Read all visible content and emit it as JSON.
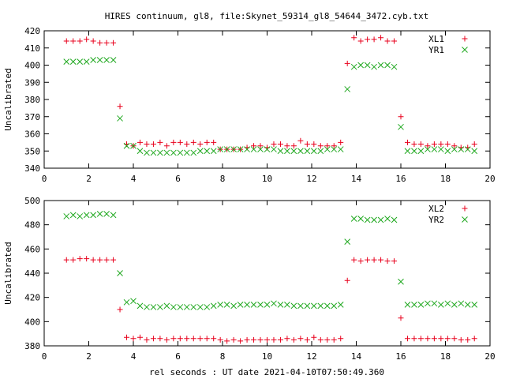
{
  "title": "HIRES continuum, gl8, file:Skynet_59314_gl8_54644_3472.cyb.txt",
  "xlabel": "rel seconds : UT date 2021-04-10T07:50:49.360",
  "colors": {
    "series1": "#e8001c",
    "series2": "#1fa81f"
  },
  "chart_data": [
    {
      "type": "scatter",
      "ylabel": "Uncalibrated",
      "xlim": [
        0,
        20
      ],
      "ylim": [
        340,
        420
      ],
      "xticks": [
        0,
        2,
        4,
        6,
        8,
        10,
        12,
        14,
        16,
        18,
        20
      ],
      "yticks": [
        340,
        350,
        360,
        370,
        380,
        390,
        400,
        410,
        420
      ],
      "legend_position": "top-right",
      "series": [
        {
          "name": "XL1",
          "marker": "plus",
          "color": "#e8001c",
          "x": [
            1.0,
            1.3,
            1.6,
            1.9,
            2.2,
            2.5,
            2.8,
            3.1,
            3.4,
            3.7,
            4.0,
            4.3,
            4.6,
            4.9,
            5.2,
            5.5,
            5.8,
            6.1,
            6.4,
            6.7,
            7.0,
            7.3,
            7.6,
            7.9,
            8.2,
            8.5,
            8.8,
            9.1,
            9.4,
            9.7,
            10.0,
            10.3,
            10.6,
            10.9,
            11.2,
            11.5,
            11.8,
            12.1,
            12.4,
            12.7,
            13.0,
            13.3,
            13.6,
            13.9,
            14.2,
            14.5,
            14.8,
            15.1,
            15.4,
            15.7,
            16.0,
            16.3,
            16.6,
            16.9,
            17.2,
            17.5,
            17.8,
            18.1,
            18.4,
            18.7,
            19.0,
            19.3
          ],
          "y": [
            414,
            414,
            414,
            415,
            414,
            413,
            413,
            413,
            376,
            354,
            353,
            355,
            354,
            354,
            355,
            353,
            355,
            355,
            354,
            355,
            354,
            355,
            355,
            351,
            351,
            351,
            351,
            352,
            353,
            353,
            352,
            354,
            354,
            353,
            353,
            356,
            354,
            354,
            353,
            353,
            353,
            355,
            401,
            416,
            414,
            415,
            415,
            416,
            414,
            414,
            370,
            355,
            354,
            354,
            353,
            354,
            354,
            354,
            353,
            352,
            352,
            354
          ]
        },
        {
          "name": "YR1",
          "marker": "cross",
          "color": "#1fa81f",
          "x": [
            1.0,
            1.3,
            1.6,
            1.9,
            2.2,
            2.5,
            2.8,
            3.1,
            3.4,
            3.7,
            4.0,
            4.3,
            4.6,
            4.9,
            5.2,
            5.5,
            5.8,
            6.1,
            6.4,
            6.7,
            7.0,
            7.3,
            7.6,
            7.9,
            8.2,
            8.5,
            8.8,
            9.1,
            9.4,
            9.7,
            10.0,
            10.3,
            10.6,
            10.9,
            11.2,
            11.5,
            11.8,
            12.1,
            12.4,
            12.7,
            13.0,
            13.3,
            13.6,
            13.9,
            14.2,
            14.5,
            14.8,
            15.1,
            15.4,
            15.7,
            16.0,
            16.3,
            16.6,
            16.9,
            17.2,
            17.5,
            17.8,
            18.1,
            18.4,
            18.7,
            19.0,
            19.3
          ],
          "y": [
            402,
            402,
            402,
            402,
            403,
            403,
            403,
            403,
            369,
            353,
            353,
            350,
            349,
            349,
            349,
            349,
            349,
            349,
            349,
            349,
            350,
            350,
            350,
            351,
            351,
            351,
            351,
            351,
            351,
            351,
            351,
            351,
            350,
            350,
            350,
            350,
            350,
            350,
            350,
            351,
            351,
            351,
            386,
            399,
            400,
            400,
            399,
            400,
            400,
            399,
            364,
            350,
            350,
            350,
            351,
            351,
            351,
            350,
            351,
            351,
            351,
            350
          ]
        }
      ]
    },
    {
      "type": "scatter",
      "ylabel": "Uncalibrated",
      "xlim": [
        0,
        20
      ],
      "ylim": [
        380,
        500
      ],
      "xticks": [
        0,
        2,
        4,
        6,
        8,
        10,
        12,
        14,
        16,
        18,
        20
      ],
      "yticks": [
        380,
        400,
        420,
        440,
        460,
        480,
        500
      ],
      "legend_position": "top-right",
      "series": [
        {
          "name": "XL2",
          "marker": "plus",
          "color": "#e8001c",
          "x": [
            1.0,
            1.3,
            1.6,
            1.9,
            2.2,
            2.5,
            2.8,
            3.1,
            3.4,
            3.7,
            4.0,
            4.3,
            4.6,
            4.9,
            5.2,
            5.5,
            5.8,
            6.1,
            6.4,
            6.7,
            7.0,
            7.3,
            7.6,
            7.9,
            8.2,
            8.5,
            8.8,
            9.1,
            9.4,
            9.7,
            10.0,
            10.3,
            10.6,
            10.9,
            11.2,
            11.5,
            11.8,
            12.1,
            12.4,
            12.7,
            13.0,
            13.3,
            13.6,
            13.9,
            14.2,
            14.5,
            14.8,
            15.1,
            15.4,
            15.7,
            16.0,
            16.3,
            16.6,
            16.9,
            17.2,
            17.5,
            17.8,
            18.1,
            18.4,
            18.7,
            19.0,
            19.3
          ],
          "y": [
            451,
            451,
            452,
            452,
            451,
            451,
            451,
            451,
            410,
            387,
            386,
            387,
            385,
            386,
            386,
            385,
            386,
            386,
            386,
            386,
            386,
            386,
            386,
            385,
            384,
            385,
            384,
            385,
            385,
            385,
            385,
            385,
            385,
            386,
            385,
            386,
            385,
            387,
            385,
            385,
            385,
            386,
            434,
            451,
            450,
            451,
            451,
            451,
            450,
            450,
            403,
            386,
            386,
            386,
            386,
            386,
            386,
            386,
            386,
            385,
            385,
            386
          ]
        },
        {
          "name": "YR2",
          "marker": "cross",
          "color": "#1fa81f",
          "x": [
            1.0,
            1.3,
            1.6,
            1.9,
            2.2,
            2.5,
            2.8,
            3.1,
            3.4,
            3.7,
            4.0,
            4.3,
            4.6,
            4.9,
            5.2,
            5.5,
            5.8,
            6.1,
            6.4,
            6.7,
            7.0,
            7.3,
            7.6,
            7.9,
            8.2,
            8.5,
            8.8,
            9.1,
            9.4,
            9.7,
            10.0,
            10.3,
            10.6,
            10.9,
            11.2,
            11.5,
            11.8,
            12.1,
            12.4,
            12.7,
            13.0,
            13.3,
            13.6,
            13.9,
            14.2,
            14.5,
            14.8,
            15.1,
            15.4,
            15.7,
            16.0,
            16.3,
            16.6,
            16.9,
            17.2,
            17.5,
            17.8,
            18.1,
            18.4,
            18.7,
            19.0,
            19.3
          ],
          "y": [
            487,
            488,
            487,
            488,
            488,
            489,
            489,
            488,
            440,
            416,
            417,
            413,
            412,
            412,
            412,
            413,
            412,
            412,
            412,
            412,
            412,
            412,
            413,
            414,
            414,
            413,
            414,
            414,
            414,
            414,
            414,
            415,
            414,
            414,
            413,
            413,
            413,
            413,
            413,
            413,
            413,
            414,
            466,
            485,
            485,
            484,
            484,
            484,
            485,
            484,
            433,
            414,
            414,
            414,
            415,
            415,
            414,
            415,
            414,
            415,
            414,
            414
          ]
        }
      ]
    }
  ]
}
